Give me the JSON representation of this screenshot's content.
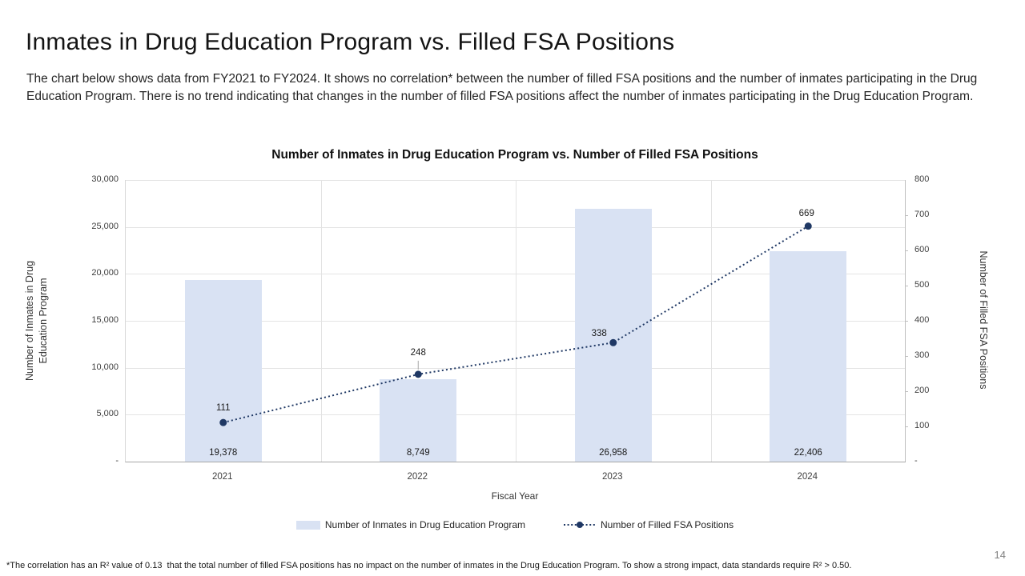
{
  "slide": {
    "title": "Inmates in Drug Education Program vs. Filled FSA Positions",
    "subtitle": "The chart below shows data from FY2021 to FY2024. It shows no correlation* between the number of filled FSA positions and the number of inmates participating in the Drug Education Program. There is no trend indicating that changes in the number of filled FSA positions affect the number of inmates participating in the Drug Education Program.",
    "footnote": "*The correlation has an R² value of 0.13  that the total number of filled FSA positions has no impact on the number of inmates in the Drug Education Program. To show a strong impact, data standards require R² > 0.50.",
    "page_number": "14"
  },
  "chart_data": {
    "type": "combo-bar-line",
    "title": "Number of Inmates in Drug Education Program vs. Number of Filled FSA Positions",
    "categories": [
      "2021",
      "2022",
      "2023",
      "2024"
    ],
    "xlabel": "Fiscal Year",
    "grid": true,
    "legend_position": "bottom",
    "axes": {
      "left": {
        "label": "Number of Inmates in Drug Education Program",
        "label_lines": [
          "Number of Inmates in Drug",
          "Education Program"
        ],
        "range": [
          0,
          30000
        ],
        "ticks": [
          "-",
          "5,000",
          "10,000",
          "15,000",
          "20,000",
          "25,000",
          "30,000"
        ]
      },
      "right": {
        "label": "Number of Filled FSA Positions",
        "range": [
          0,
          800
        ],
        "ticks": [
          "-",
          "100",
          "200",
          "300",
          "400",
          "500",
          "600",
          "700",
          "800"
        ]
      }
    },
    "series": [
      {
        "name": "Number of Inmates in Drug Education Program",
        "type": "bar",
        "axis": "left",
        "color": "#d9e2f3",
        "values": [
          19378,
          8749,
          26958,
          22406
        ],
        "labels": [
          "19,378",
          "8,749",
          "26,958",
          "22,406"
        ]
      },
      {
        "name": "Number of Filled FSA Positions",
        "type": "line",
        "line_style": "dotted",
        "axis": "right",
        "color": "#1f3864",
        "values": [
          111,
          248,
          338,
          669
        ],
        "labels": [
          "111",
          "248",
          "338",
          "669"
        ]
      }
    ]
  }
}
